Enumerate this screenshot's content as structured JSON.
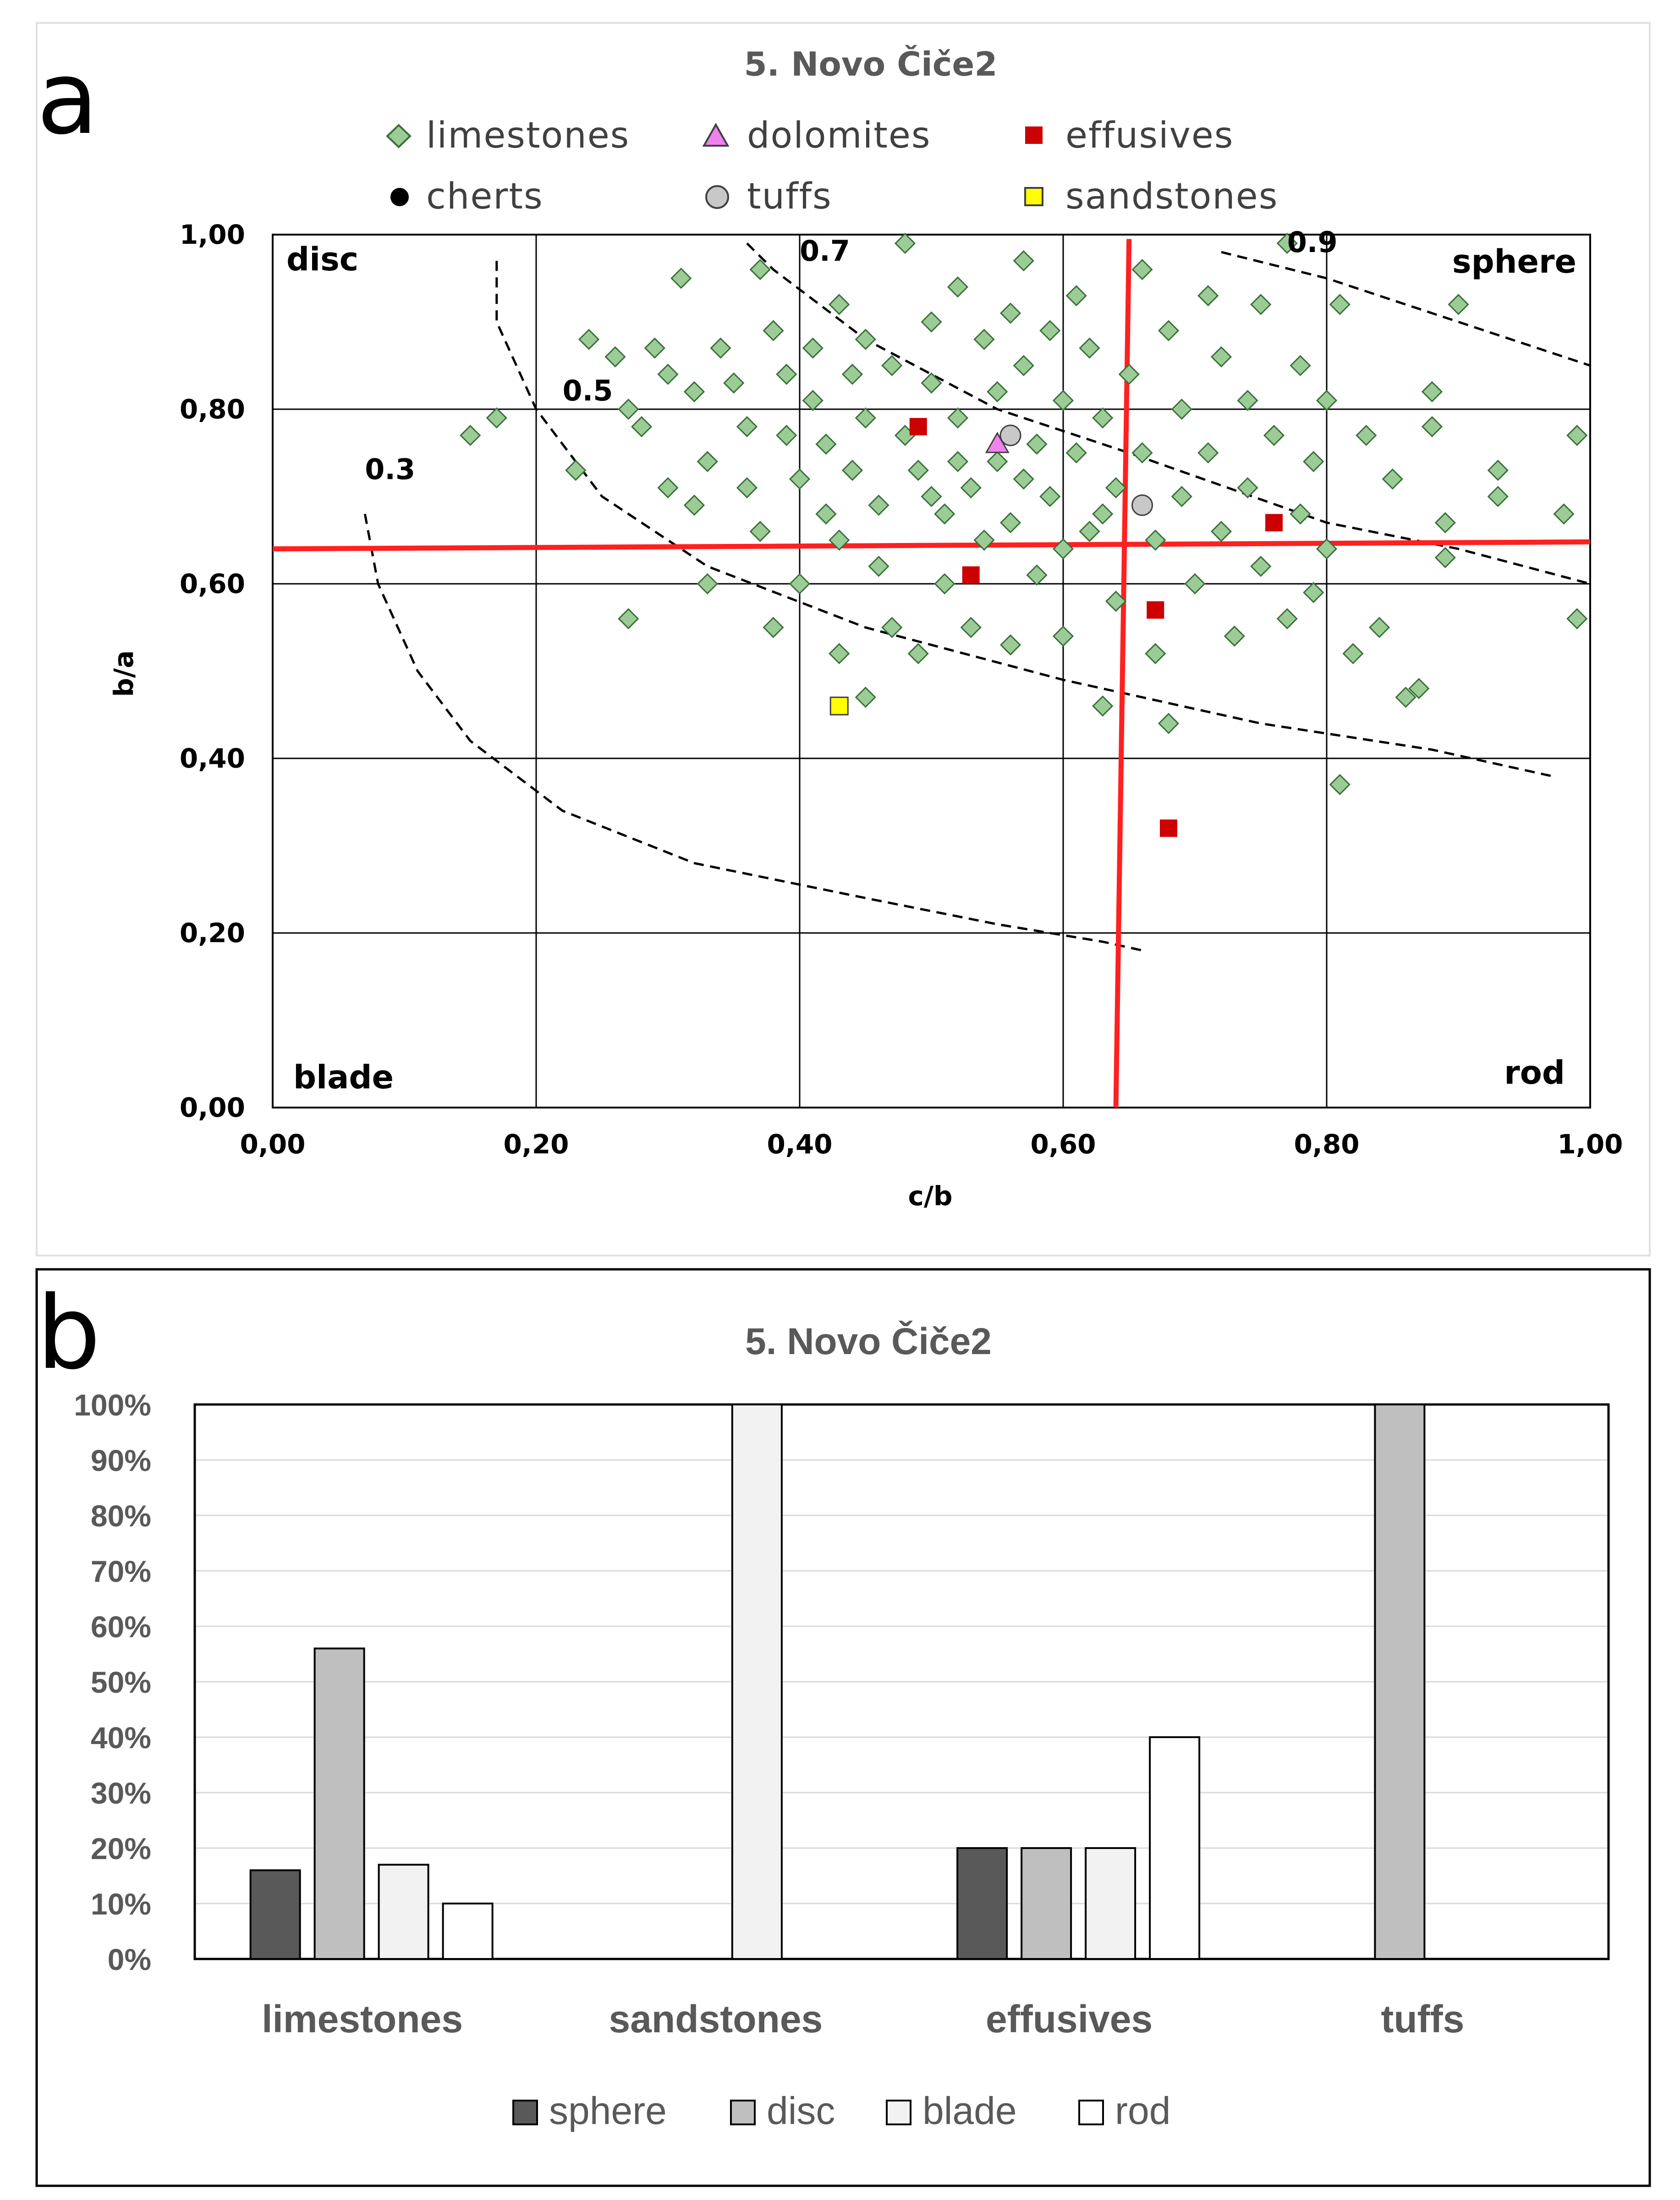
{
  "panel_a_label": "a",
  "panel_b_label": "b",
  "chart_data": [
    {
      "type": "scatter",
      "title": "5. Novo Čiče2",
      "xlabel": "c/b",
      "ylabel": "b/a",
      "xlim": [
        0,
        1
      ],
      "ylim": [
        0,
        1
      ],
      "x_tick_labels": [
        "0,00",
        "0,20",
        "0,40",
        "0,60",
        "0,80",
        "1,00"
      ],
      "y_tick_labels": [
        "0,00",
        "0,20",
        "0,40",
        "0,60",
        "0,80",
        "1,00"
      ],
      "zone_labels": {
        "disc": "disc",
        "sphere": "sphere",
        "blade": "blade",
        "rod": "rod"
      },
      "isoline_labels": [
        {
          "text": "0.3",
          "x": 0.07,
          "y": 0.72
        },
        {
          "text": "0.5",
          "x": 0.22,
          "y": 0.81
        },
        {
          "text": "0.7",
          "x": 0.4,
          "y": 0.97
        },
        {
          "text": "0.9",
          "x": 0.77,
          "y": 0.98
        }
      ],
      "isolines": [
        [
          [
            0.07,
            0.68
          ],
          [
            0.08,
            0.6
          ],
          [
            0.11,
            0.5
          ],
          [
            0.15,
            0.42
          ],
          [
            0.22,
            0.34
          ],
          [
            0.32,
            0.28
          ],
          [
            0.45,
            0.24
          ],
          [
            0.55,
            0.21
          ],
          [
            0.63,
            0.19
          ],
          [
            0.66,
            0.18
          ]
        ],
        [
          [
            0.17,
            0.97
          ],
          [
            0.17,
            0.9
          ],
          [
            0.2,
            0.8
          ],
          [
            0.25,
            0.7
          ],
          [
            0.33,
            0.62
          ],
          [
            0.45,
            0.55
          ],
          [
            0.6,
            0.49
          ],
          [
            0.75,
            0.44
          ],
          [
            0.88,
            0.41
          ],
          [
            0.97,
            0.38
          ]
        ],
        [
          [
            0.36,
            0.99
          ],
          [
            0.38,
            0.96
          ],
          [
            0.45,
            0.88
          ],
          [
            0.55,
            0.8
          ],
          [
            0.65,
            0.75
          ],
          [
            0.8,
            0.67
          ],
          [
            0.9,
            0.64
          ],
          [
            1.0,
            0.6
          ]
        ],
        [
          [
            0.72,
            0.98
          ],
          [
            0.8,
            0.95
          ],
          [
            0.9,
            0.9
          ],
          [
            1.0,
            0.85
          ]
        ]
      ],
      "threshold_lines": {
        "x": 0.645,
        "y": 0.645
      },
      "legend": [
        {
          "name": "limestones",
          "marker": "diamond",
          "color": "#9ccc96"
        },
        {
          "name": "dolomites",
          "marker": "triangle",
          "color": "#ee82ee"
        },
        {
          "name": "effusives",
          "marker": "square",
          "color": "#cc0000"
        },
        {
          "name": "cherts",
          "marker": "circle",
          "color": "#000000"
        },
        {
          "name": "tuffs",
          "marker": "circle",
          "color": "#c8c8c8"
        },
        {
          "name": "sandstones",
          "marker": "square",
          "color": "#ffff00"
        }
      ],
      "series": [
        {
          "name": "limestones",
          "points": [
            [
              0.15,
              0.77
            ],
            [
              0.17,
              0.79
            ],
            [
              0.23,
              0.73
            ],
            [
              0.24,
              0.88
            ],
            [
              0.26,
              0.86
            ],
            [
              0.27,
              0.8
            ],
            [
              0.27,
              0.56
            ],
            [
              0.28,
              0.78
            ],
            [
              0.29,
              0.87
            ],
            [
              0.3,
              0.84
            ],
            [
              0.3,
              0.71
            ],
            [
              0.31,
              0.95
            ],
            [
              0.32,
              0.82
            ],
            [
              0.32,
              0.69
            ],
            [
              0.33,
              0.74
            ],
            [
              0.33,
              0.6
            ],
            [
              0.34,
              0.87
            ],
            [
              0.35,
              0.83
            ],
            [
              0.36,
              0.78
            ],
            [
              0.36,
              0.71
            ],
            [
              0.37,
              0.96
            ],
            [
              0.37,
              0.66
            ],
            [
              0.38,
              0.89
            ],
            [
              0.38,
              0.55
            ],
            [
              0.39,
              0.84
            ],
            [
              0.39,
              0.77
            ],
            [
              0.4,
              0.72
            ],
            [
              0.4,
              0.6
            ],
            [
              0.41,
              0.87
            ],
            [
              0.41,
              0.81
            ],
            [
              0.42,
              0.76
            ],
            [
              0.42,
              0.68
            ],
            [
              0.43,
              0.92
            ],
            [
              0.43,
              0.65
            ],
            [
              0.43,
              0.52
            ],
            [
              0.44,
              0.84
            ],
            [
              0.44,
              0.73
            ],
            [
              0.45,
              0.88
            ],
            [
              0.45,
              0.79
            ],
            [
              0.46,
              0.69
            ],
            [
              0.46,
              0.62
            ],
            [
              0.47,
              0.85
            ],
            [
              0.47,
              0.55
            ],
            [
              0.48,
              0.99
            ],
            [
              0.48,
              0.77
            ],
            [
              0.49,
              0.73
            ],
            [
              0.49,
              0.52
            ],
            [
              0.5,
              0.9
            ],
            [
              0.5,
              0.83
            ],
            [
              0.51,
              0.68
            ],
            [
              0.51,
              0.6
            ],
            [
              0.52,
              0.94
            ],
            [
              0.52,
              0.79
            ],
            [
              0.53,
              0.71
            ],
            [
              0.53,
              0.55
            ],
            [
              0.54,
              0.88
            ],
            [
              0.54,
              0.65
            ],
            [
              0.55,
              0.82
            ],
            [
              0.55,
              0.74
            ],
            [
              0.56,
              0.91
            ],
            [
              0.56,
              0.67
            ],
            [
              0.56,
              0.53
            ],
            [
              0.57,
              0.97
            ],
            [
              0.57,
              0.85
            ],
            [
              0.58,
              0.76
            ],
            [
              0.58,
              0.61
            ],
            [
              0.59,
              0.89
            ],
            [
              0.59,
              0.7
            ],
            [
              0.6,
              0.81
            ],
            [
              0.6,
              0.54
            ],
            [
              0.61,
              0.93
            ],
            [
              0.61,
              0.75
            ],
            [
              0.62,
              0.66
            ],
            [
              0.62,
              0.87
            ],
            [
              0.63,
              0.79
            ],
            [
              0.63,
              0.46
            ],
            [
              0.64,
              0.71
            ],
            [
              0.64,
              0.58
            ],
            [
              0.65,
              0.84
            ],
            [
              0.66,
              0.96
            ],
            [
              0.66,
              0.75
            ],
            [
              0.67,
              0.65
            ],
            [
              0.67,
              0.52
            ],
            [
              0.68,
              0.89
            ],
            [
              0.68,
              0.44
            ],
            [
              0.69,
              0.8
            ],
            [
              0.69,
              0.7
            ],
            [
              0.7,
              0.6
            ],
            [
              0.71,
              0.93
            ],
            [
              0.71,
              0.75
            ],
            [
              0.72,
              0.86
            ],
            [
              0.72,
              0.66
            ],
            [
              0.73,
              0.54
            ],
            [
              0.74,
              0.81
            ],
            [
              0.74,
              0.71
            ],
            [
              0.75,
              0.92
            ],
            [
              0.75,
              0.62
            ],
            [
              0.76,
              0.77
            ],
            [
              0.77,
              0.99
            ],
            [
              0.77,
              0.56
            ],
            [
              0.78,
              0.85
            ],
            [
              0.78,
              0.68
            ],
            [
              0.79,
              0.74
            ],
            [
              0.79,
              0.59
            ],
            [
              0.8,
              0.81
            ],
            [
              0.8,
              0.64
            ],
            [
              0.81,
              0.92
            ],
            [
              0.81,
              0.37
            ],
            [
              0.82,
              0.52
            ],
            [
              0.83,
              0.77
            ],
            [
              0.84,
              0.55
            ],
            [
              0.85,
              0.72
            ],
            [
              0.86,
              0.47
            ],
            [
              0.87,
              0.48
            ],
            [
              0.88,
              0.82
            ],
            [
              0.88,
              0.78
            ],
            [
              0.89,
              0.67
            ],
            [
              0.89,
              0.63
            ],
            [
              0.9,
              0.92
            ],
            [
              0.93,
              0.73
            ],
            [
              0.93,
              0.7
            ],
            [
              0.98,
              0.68
            ],
            [
              0.99,
              0.77
            ],
            [
              0.99,
              0.56
            ],
            [
              0.45,
              0.47
            ],
            [
              0.5,
              0.7
            ],
            [
              0.52,
              0.74
            ],
            [
              0.57,
              0.72
            ],
            [
              0.6,
              0.64
            ],
            [
              0.63,
              0.68
            ]
          ]
        },
        {
          "name": "dolomites",
          "points": [
            [
              0.55,
              0.76
            ]
          ]
        },
        {
          "name": "effusives",
          "points": [
            [
              0.49,
              0.78
            ],
            [
              0.53,
              0.61
            ],
            [
              0.67,
              0.57
            ],
            [
              0.68,
              0.32
            ],
            [
              0.76,
              0.67
            ]
          ]
        },
        {
          "name": "cherts",
          "points": []
        },
        {
          "name": "tuffs",
          "points": [
            [
              0.56,
              0.77
            ],
            [
              0.66,
              0.69
            ]
          ]
        },
        {
          "name": "sandstones",
          "points": [
            [
              0.43,
              0.46
            ]
          ]
        }
      ]
    },
    {
      "type": "bar",
      "title": "5. Novo Čiče2",
      "categories": [
        "limestones",
        "sandstones",
        "effusives",
        "tuffs"
      ],
      "ylim": [
        0,
        100
      ],
      "y_tick_labels": [
        "0%",
        "10%",
        "20%",
        "30%",
        "40%",
        "50%",
        "60%",
        "70%",
        "80%",
        "90%",
        "100%"
      ],
      "series": [
        {
          "name": "sphere",
          "color": "#595959",
          "values": [
            16,
            0,
            20,
            0
          ]
        },
        {
          "name": "disc",
          "color": "#bfbfbf",
          "values": [
            56,
            0,
            20,
            100
          ]
        },
        {
          "name": "blade",
          "color": "#f2f2f2",
          "values": [
            17,
            100,
            20,
            0
          ]
        },
        {
          "name": "rod",
          "color": "#ffffff",
          "values": [
            10,
            0,
            40,
            0
          ]
        }
      ]
    }
  ]
}
